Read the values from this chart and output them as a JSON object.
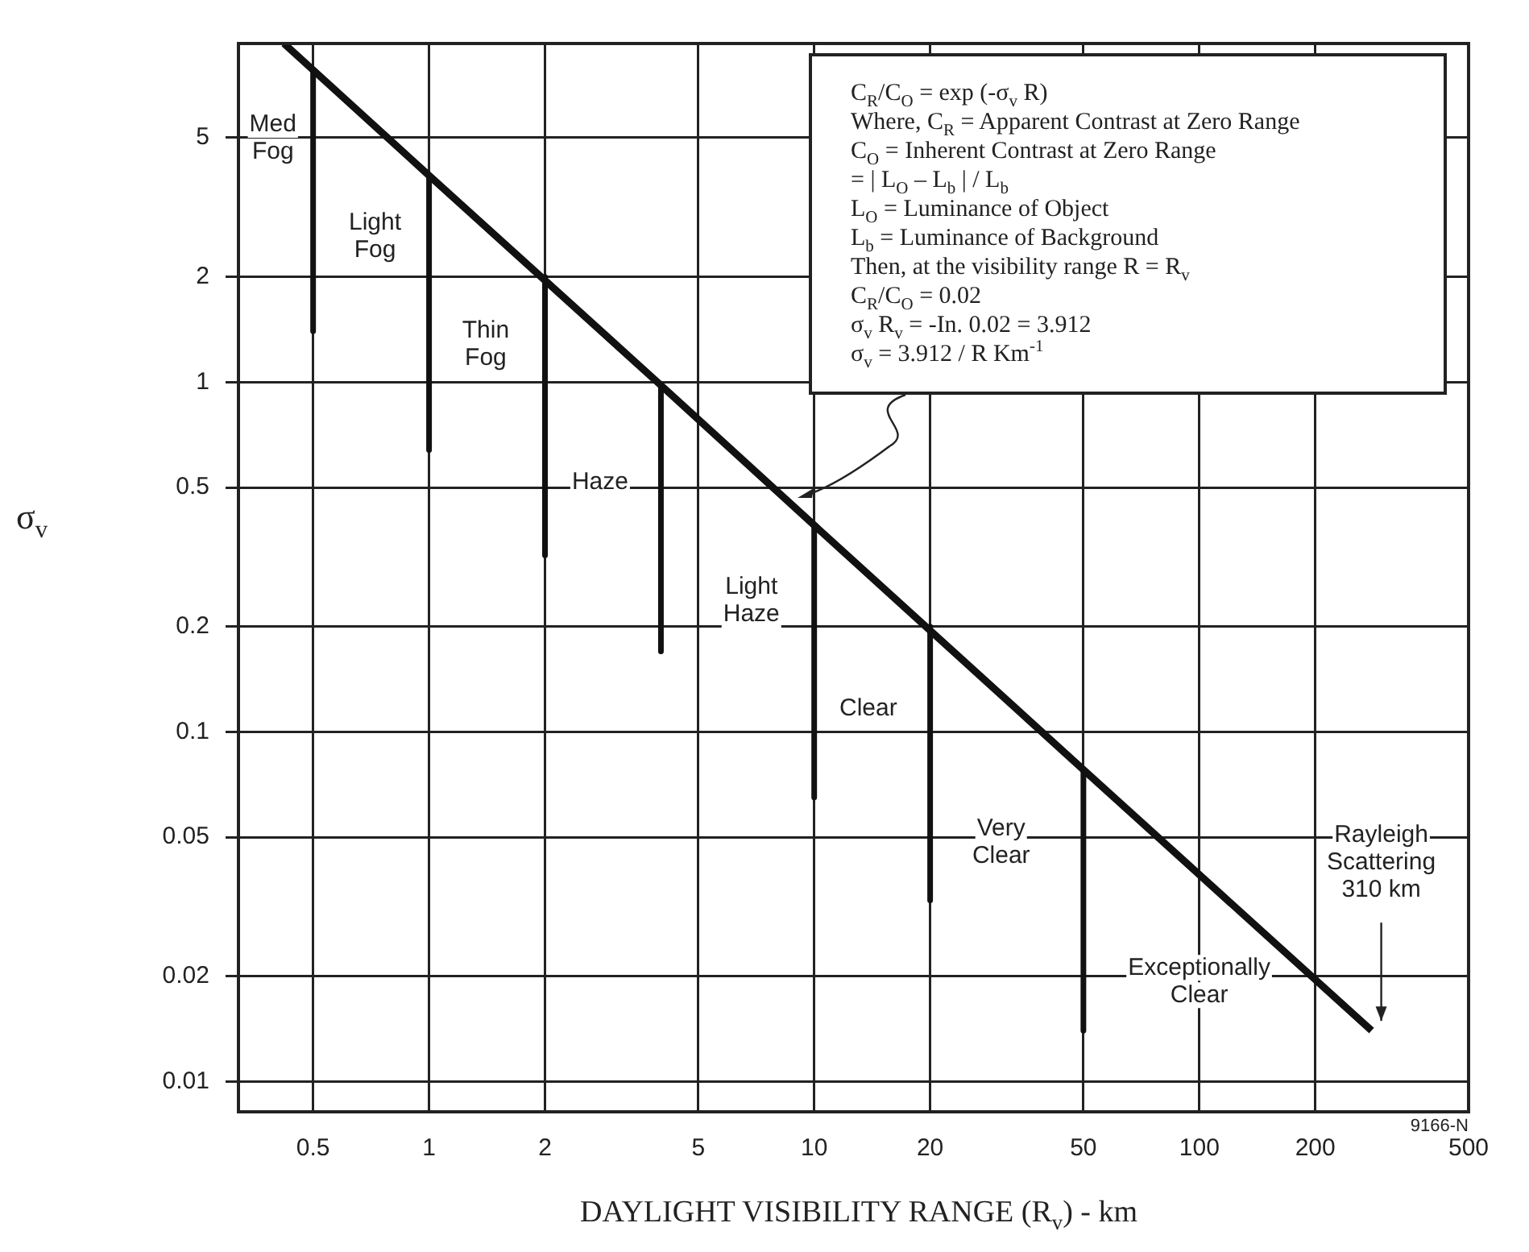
{
  "chart_data": {
    "type": "line",
    "xlabel": "DAYLIGHT VISIBILITY RANGE (R$_{v}$) - km",
    "ylabel": "σ$_{v}$",
    "log": "xy",
    "grid": true,
    "xlim": [
      0.32,
      500
    ],
    "ylim": [
      0.0082,
      9.3
    ],
    "xticks": [
      0.5,
      1,
      2,
      5,
      10,
      20,
      50,
      100,
      200,
      500
    ],
    "yticks": [
      0.01,
      0.02,
      0.05,
      0.1,
      0.2,
      0.5,
      1,
      2,
      5
    ],
    "series": [
      {
        "type": "line",
        "color": "#111111",
        "x": [
          0.42,
          1,
          4,
          10,
          50,
          280
        ],
        "values": [
          9.3,
          3.9,
          0.98,
          0.39,
          0.078,
          0.014
        ]
      },
      {
        "type": "line",
        "color": "#111111",
        "x": [
          0.5,
          0.5
        ],
        "values": [
          7.8,
          1.4
        ]
      },
      {
        "type": "line",
        "color": "#111111",
        "x": [
          1,
          1
        ],
        "values": [
          3.9,
          0.64
        ]
      },
      {
        "type": "line",
        "color": "#111111",
        "x": [
          2,
          2
        ],
        "values": [
          2.0,
          0.32
        ]
      },
      {
        "type": "line",
        "color": "#111111",
        "x": [
          4,
          4
        ],
        "values": [
          0.98,
          0.17
        ]
      },
      {
        "type": "line",
        "color": "#111111",
        "x": [
          10,
          10
        ],
        "values": [
          0.39,
          0.065
        ]
      },
      {
        "type": "line",
        "color": "#111111",
        "x": [
          20,
          20
        ],
        "values": [
          0.2,
          0.033
        ]
      },
      {
        "type": "line",
        "color": "#111111",
        "x": [
          50,
          50
        ],
        "values": [
          0.078,
          0.014
        ]
      }
    ],
    "annotations": [
      "Med\nFog",
      "Light\nFog",
      "Thin\nFog",
      "Haze",
      "Light\nHaze",
      "Clear",
      "Very\nClear",
      "Exceptionally\nClear",
      "C$_{R}$/C$_{O}$ = exp (-σ$_{v}$ R)",
      "Where, C$_{R}$ = Apparent Contrast at Zero Range",
      "C$_{O}$ = Inherent Contrast at Zero Range",
      "= | L$_{O}$ – L$_{b}$ | / L$_{b}$",
      "L$_{O}$ = Luminance of Object",
      "L$_{b}$ = Luminance of Background",
      "Then, at the visibility range R = R$_{v}$",
      "C$_{R}$/C$_{O}$ = 0.02",
      "σ$_{v}$ R$_{v}$ = -In. 0.02 = 3.912",
      "σ$_{v}$ = 3.912 / R Km$^{-1}$",
      {
        "text": "Rayleigh\nScattering\n310 km",
        "x": 280,
        "y": 0.014
      },
      "9166-N"
    ]
  }
}
